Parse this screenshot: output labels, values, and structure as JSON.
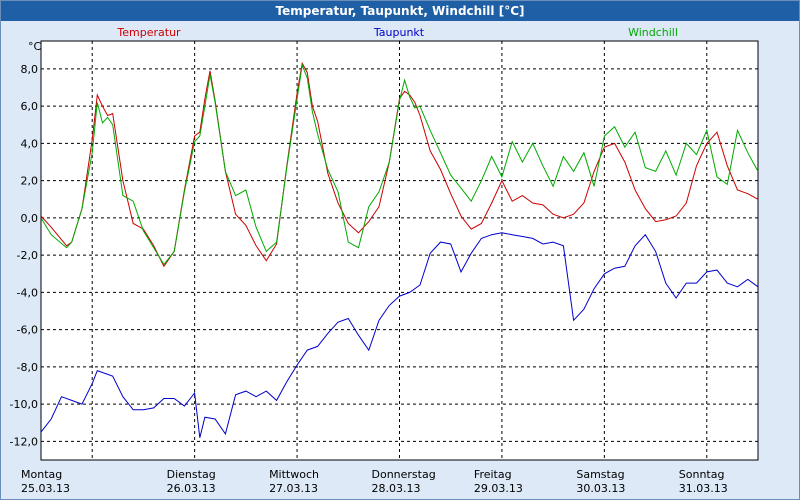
{
  "window": {
    "title": "Temperatur, Taupunkt, Windchill [°C]"
  },
  "colors": {
    "temperatur": "#cc0000",
    "taupunkt": "#0000cc",
    "windchill": "#00aa00",
    "title_bar": "#1f5fa6",
    "background": "#dde9f7"
  },
  "chart_data": {
    "type": "line",
    "title": "Temperatur, Taupunkt, Windchill [°C]",
    "ylabel": "°C",
    "ylim": [
      -13,
      9.5
    ],
    "xlim": [
      0,
      7
    ],
    "yticks": [
      "8,0",
      "6,0",
      "4,0",
      "2,0",
      "0,0",
      "-2,0",
      "-4,0",
      "-6,0",
      "-8,0",
      "-10,0",
      "-12,0"
    ],
    "ytick_values": [
      8,
      6,
      4,
      2,
      0,
      -2,
      -4,
      -6,
      -8,
      -10,
      -12
    ],
    "days": [
      {
        "weekday": "Montag",
        "date": "25.03.13"
      },
      {
        "weekday": "Dienstag",
        "date": "26.03.13"
      },
      {
        "weekday": "Mittwoch",
        "date": "27.03.13"
      },
      {
        "weekday": "Donnerstag",
        "date": "28.03.13"
      },
      {
        "weekday": "Freitag",
        "date": "29.03.13"
      },
      {
        "weekday": "Samstag",
        "date": "30.03.13"
      },
      {
        "weekday": "Sonntag",
        "date": "31.03.13"
      }
    ],
    "grid": true,
    "series": [
      {
        "name": "Temperatur",
        "color": "#cc0000",
        "x": [
          0,
          0.1,
          0.25,
          0.3,
          0.4,
          0.5,
          0.55,
          0.6,
          0.65,
          0.7,
          0.8,
          0.9,
          1,
          1.1,
          1.2,
          1.3,
          1.4,
          1.5,
          1.55,
          1.6,
          1.65,
          1.7,
          1.8,
          1.9,
          2,
          2.1,
          2.2,
          2.3,
          2.4,
          2.5,
          2.55,
          2.6,
          2.65,
          2.7,
          2.8,
          2.9,
          3,
          3.1,
          3.2,
          3.3,
          3.4,
          3.5,
          3.55,
          3.6,
          3.65,
          3.7,
          3.8,
          3.9,
          4,
          4.1,
          4.2,
          4.3,
          4.4,
          4.5,
          4.6,
          4.7,
          4.8,
          4.9,
          5,
          5.1,
          5.2,
          5.3,
          5.4,
          5.5,
          5.6,
          5.7,
          5.8,
          5.9,
          6,
          6.1,
          6.2,
          6.3,
          6.4,
          6.5,
          6.6,
          6.7,
          6.8,
          6.9,
          7
        ],
        "y": [
          0.1,
          -0.5,
          -1.5,
          -1.3,
          0.5,
          4.2,
          6.6,
          6.0,
          5.5,
          5.6,
          2.0,
          -0.3,
          -0.6,
          -1.5,
          -2.6,
          -1.8,
          1.5,
          4.4,
          4.6,
          6.4,
          7.9,
          6.3,
          2.5,
          0.2,
          -0.4,
          -1.5,
          -2.3,
          -1.4,
          2.8,
          6.7,
          8.3,
          7.8,
          6.0,
          5.2,
          2.4,
          0.8,
          -0.3,
          -0.8,
          -0.2,
          0.6,
          3.0,
          6.4,
          6.8,
          6.6,
          6.2,
          5.5,
          3.6,
          2.6,
          1.3,
          0.1,
          -0.6,
          -0.3,
          0.8,
          2.0,
          0.9,
          1.2,
          0.8,
          0.7,
          0.2,
          0.0,
          0.2,
          0.8,
          2.5,
          3.8,
          4.0,
          3.0,
          1.5,
          0.5,
          -0.2,
          -0.1,
          0.1,
          0.8,
          2.8,
          4.0,
          4.6,
          2.8,
          1.5,
          1.3,
          1.0
        ]
      },
      {
        "name": "Taupunkt",
        "color": "#0000cc",
        "x": [
          0,
          0.1,
          0.2,
          0.3,
          0.4,
          0.5,
          0.55,
          0.6,
          0.7,
          0.8,
          0.9,
          1,
          1.1,
          1.2,
          1.3,
          1.4,
          1.5,
          1.55,
          1.6,
          1.7,
          1.8,
          1.9,
          2,
          2.1,
          2.2,
          2.3,
          2.4,
          2.5,
          2.6,
          2.7,
          2.8,
          2.9,
          3,
          3.1,
          3.2,
          3.3,
          3.4,
          3.5,
          3.6,
          3.7,
          3.8,
          3.9,
          4,
          4.1,
          4.2,
          4.3,
          4.4,
          4.5,
          4.6,
          4.7,
          4.8,
          4.9,
          5,
          5.1,
          5.2,
          5.3,
          5.4,
          5.5,
          5.6,
          5.7,
          5.8,
          5.9,
          6,
          6.1,
          6.2,
          6.3,
          6.4,
          6.5,
          6.6,
          6.7,
          6.8,
          6.9,
          7
        ],
        "y": [
          -11.5,
          -10.8,
          -9.6,
          -9.8,
          -10.0,
          -8.9,
          -8.2,
          -8.3,
          -8.5,
          -9.6,
          -10.3,
          -10.3,
          -10.2,
          -9.7,
          -9.7,
          -10.1,
          -9.4,
          -11.8,
          -10.7,
          -10.8,
          -11.6,
          -9.5,
          -9.3,
          -9.6,
          -9.3,
          -9.8,
          -8.8,
          -7.9,
          -7.1,
          -6.9,
          -6.2,
          -5.6,
          -5.4,
          -6.3,
          -7.1,
          -5.5,
          -4.7,
          -4.2,
          -4.0,
          -3.6,
          -1.9,
          -1.3,
          -1.4,
          -2.9,
          -1.9,
          -1.1,
          -0.9,
          -0.8,
          -0.9,
          -1.0,
          -1.1,
          -1.4,
          -1.3,
          -1.5,
          -5.5,
          -4.9,
          -3.8,
          -3.0,
          -2.7,
          -2.6,
          -1.5,
          -0.9,
          -1.8,
          -3.5,
          -4.3,
          -3.5,
          -3.5,
          -2.9,
          -2.8,
          -3.5,
          -3.7,
          -3.3,
          -3.7
        ]
      },
      {
        "name": "Windchill",
        "color": "#00aa00",
        "x": [
          0,
          0.1,
          0.25,
          0.3,
          0.4,
          0.5,
          0.55,
          0.6,
          0.65,
          0.7,
          0.8,
          0.9,
          1,
          1.1,
          1.2,
          1.3,
          1.4,
          1.5,
          1.55,
          1.6,
          1.65,
          1.7,
          1.8,
          1.9,
          2,
          2.1,
          2.2,
          2.3,
          2.4,
          2.5,
          2.55,
          2.6,
          2.65,
          2.7,
          2.8,
          2.9,
          3,
          3.1,
          3.2,
          3.3,
          3.4,
          3.5,
          3.55,
          3.6,
          3.65,
          3.7,
          3.8,
          3.9,
          4,
          4.1,
          4.2,
          4.3,
          4.4,
          4.5,
          4.6,
          4.7,
          4.8,
          4.9,
          5,
          5.1,
          5.2,
          5.3,
          5.4,
          5.5,
          5.6,
          5.7,
          5.8,
          5.9,
          6,
          6.1,
          6.2,
          6.3,
          6.4,
          6.5,
          6.6,
          6.7,
          6.8,
          6.9,
          7
        ],
        "y": [
          0.0,
          -0.9,
          -1.6,
          -1.3,
          0.5,
          3.5,
          6.2,
          5.1,
          5.4,
          5.0,
          1.2,
          0.9,
          -0.7,
          -1.6,
          -2.5,
          -1.8,
          1.4,
          4.1,
          4.4,
          6.0,
          7.7,
          6.2,
          2.5,
          1.2,
          1.5,
          -0.5,
          -1.8,
          -1.3,
          2.7,
          6.4,
          8.2,
          7.5,
          5.7,
          4.5,
          2.6,
          1.4,
          -1.3,
          -1.6,
          0.6,
          1.4,
          3.0,
          6.3,
          7.4,
          6.5,
          5.9,
          6.0,
          4.7,
          3.5,
          2.3,
          1.6,
          0.9,
          2.0,
          3.3,
          2.2,
          4.1,
          3.0,
          4.0,
          2.8,
          1.7,
          3.3,
          2.5,
          3.5,
          1.7,
          4.4,
          4.9,
          3.8,
          4.6,
          2.7,
          2.5,
          3.6,
          2.3,
          4.0,
          3.4,
          4.7,
          2.2,
          1.8,
          4.7,
          3.5,
          2.5
        ]
      }
    ]
  }
}
